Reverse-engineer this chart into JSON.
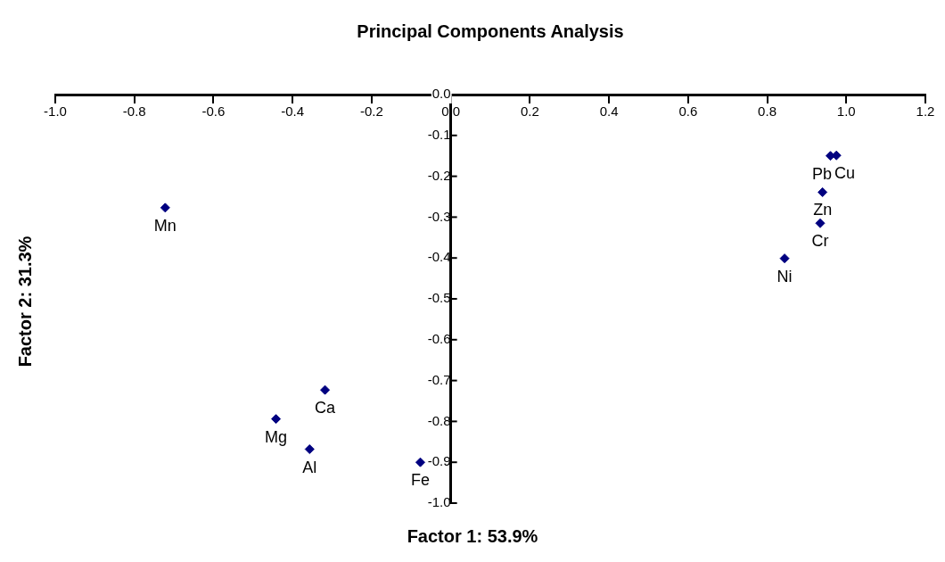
{
  "chart_data": {
    "type": "scatter",
    "title": "Principal Components Analysis",
    "xlabel": "Factor 1: 53.9%",
    "ylabel": "Factor 2: 31.3%",
    "x": [
      0.96,
      0.975,
      0.94,
      0.934,
      0.844,
      -0.722,
      -0.318,
      -0.442,
      -0.357,
      -0.077
    ],
    "series": [
      {
        "color": "#000080",
        "values": [
          -0.15,
          -0.149,
          -0.239,
          -0.315,
          -0.401,
          -0.277,
          -0.723,
          -0.794,
          -0.868,
          -0.9
        ]
      }
    ],
    "marker": "diamond",
    "grid": false,
    "legend": false,
    "xlim": [
      -1.0,
      1.2
    ],
    "xticks": [
      {
        "value": -1.0,
        "label": "-1.0"
      },
      {
        "value": -0.8,
        "label": "-0.8"
      },
      {
        "value": -0.6,
        "label": "-0.6"
      },
      {
        "value": -0.4,
        "label": "-0.4"
      },
      {
        "value": -0.2,
        "label": "-0.2"
      },
      {
        "value": 0,
        "label": "0.0"
      },
      {
        "value": 0.2,
        "label": "0.2"
      },
      {
        "value": 0.4,
        "label": "0.4"
      },
      {
        "value": 0.6,
        "label": "0.6"
      },
      {
        "value": 0.8,
        "label": "0.8"
      },
      {
        "value": 1.0,
        "label": "1.0"
      },
      {
        "value": 1.2,
        "label": "1.2"
      }
    ],
    "ylim": [
      -1.0,
      0.0
    ],
    "yticks": [
      {
        "value": -1.0,
        "label": "-1.0"
      },
      {
        "value": -0.9,
        "label": "-0.9"
      },
      {
        "value": -0.8,
        "label": "-0.8"
      },
      {
        "value": -0.7,
        "label": "-0.7"
      },
      {
        "value": -0.6,
        "label": "-0.6"
      },
      {
        "value": -0.5,
        "label": "-0.5"
      },
      {
        "value": -0.4,
        "label": "-0.4"
      },
      {
        "value": -0.3,
        "label": "-0.3"
      },
      {
        "value": -0.2,
        "label": "-0.2"
      },
      {
        "value": -0.1,
        "label": "-0.1"
      },
      {
        "value": 0,
        "label": "0.0"
      }
    ],
    "annotations": [
      {
        "text": "Pb",
        "x": 0.96,
        "y": -0.15
      },
      {
        "text": "Cu",
        "x": 0.975,
        "y": -0.149
      },
      {
        "text": "Zn",
        "x": 0.94,
        "y": -0.239
      },
      {
        "text": "Cr",
        "x": 0.934,
        "y": -0.315
      },
      {
        "text": "Ni",
        "x": 0.844,
        "y": -0.401
      },
      {
        "text": "Mn",
        "x": -0.722,
        "y": -0.277
      },
      {
        "text": "Ca",
        "x": -0.318,
        "y": -0.723
      },
      {
        "text": "Mg",
        "x": -0.442,
        "y": -0.794
      },
      {
        "text": "Al",
        "x": -0.357,
        "y": -0.868
      },
      {
        "text": "Fe",
        "x": -0.077,
        "y": -0.9
      }
    ]
  }
}
